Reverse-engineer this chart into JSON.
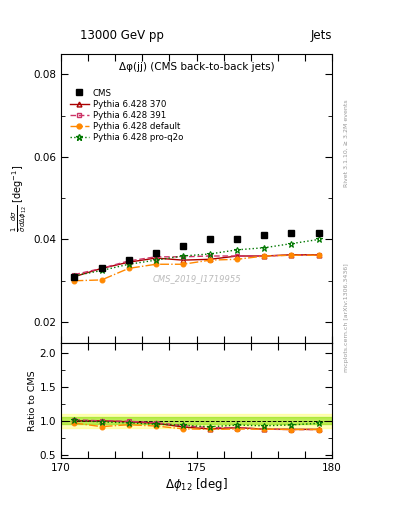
{
  "title_top": "13000 GeV pp",
  "title_right": "Jets",
  "plot_title": "Δφ(jj) (CMS back-to-back jets)",
  "ylabel_main": "$\\frac{1}{\\bar{\\sigma}}\\frac{d\\sigma}{d\\Delta\\phi_{12}}$ [deg$^{-1}$]",
  "ylabel_ratio": "Ratio to CMS",
  "xlabel": "$\\Delta\\phi_{12}$ [deg]",
  "right_label_top": "Rivet 3.1.10, ≥ 3.2M events",
  "right_label_bottom": "mcplots.cern.ch [arXiv:1306.3436]",
  "watermark": "CMS_2019_I1719955",
  "xlim": [
    170,
    180
  ],
  "ylim_main": [
    0.015,
    0.085
  ],
  "ylim_ratio": [
    0.45,
    2.15
  ],
  "yticks_main": [
    0.02,
    0.04,
    0.06,
    0.08
  ],
  "yticks_ratio": [
    0.5,
    1.0,
    1.5,
    2.0
  ],
  "xtick_labels_ratio": [
    "170",
    "",
    "",
    "",
    "",
    "175",
    "",
    "",
    "",
    "",
    "180"
  ],
  "cms_x": [
    170.5,
    171.5,
    172.5,
    173.5,
    174.5,
    175.5,
    176.5,
    177.5,
    178.5,
    179.5
  ],
  "cms_y": [
    0.031,
    0.033,
    0.035,
    0.0368,
    0.0385,
    0.04,
    0.04,
    0.041,
    0.0415,
    0.0415
  ],
  "p370_x": [
    170.5,
    171.5,
    172.5,
    173.5,
    174.5,
    175.5,
    176.5,
    177.5,
    178.5,
    179.5
  ],
  "p370_y": [
    0.031,
    0.033,
    0.0345,
    0.0355,
    0.035,
    0.0352,
    0.036,
    0.036,
    0.0363,
    0.0363
  ],
  "p391_x": [
    170.5,
    171.5,
    172.5,
    173.5,
    174.5,
    175.5,
    176.5,
    177.5,
    178.5,
    179.5
  ],
  "p391_y": [
    0.0315,
    0.033,
    0.0348,
    0.0358,
    0.0358,
    0.036,
    0.036,
    0.036,
    0.0362,
    0.0362
  ],
  "pdef_x": [
    170.5,
    171.5,
    172.5,
    173.5,
    174.5,
    175.5,
    176.5,
    177.5,
    178.5,
    179.5
  ],
  "pdef_y": [
    0.03,
    0.0302,
    0.033,
    0.034,
    0.034,
    0.035,
    0.0352,
    0.036,
    0.0362,
    0.0362
  ],
  "pproq2o_x": [
    170.5,
    171.5,
    172.5,
    173.5,
    174.5,
    175.5,
    176.5,
    177.5,
    178.5,
    179.5
  ],
  "pproq2o_y": [
    0.0312,
    0.0325,
    0.034,
    0.035,
    0.036,
    0.0365,
    0.0375,
    0.038,
    0.039,
    0.04
  ],
  "p370_ratio": [
    1.0,
    1.0,
    0.986,
    0.965,
    0.91,
    0.88,
    0.9,
    0.878,
    0.875,
    0.875
  ],
  "p391_ratio": [
    1.016,
    1.0,
    0.994,
    0.973,
    0.93,
    0.9,
    0.9,
    0.878,
    0.872,
    0.872
  ],
  "pdef_ratio": [
    0.968,
    0.915,
    0.943,
    0.924,
    0.883,
    0.875,
    0.88,
    0.878,
    0.872,
    0.872
  ],
  "pproq2o_ratio": [
    1.006,
    0.985,
    0.971,
    0.951,
    0.935,
    0.913,
    0.938,
    0.927,
    0.94,
    0.964
  ],
  "color_cms": "#000000",
  "color_370": "#aa0000",
  "color_391": "#cc3366",
  "color_def": "#ff8800",
  "color_proq2o": "#007700",
  "shade_green": "#88dd00",
  "shade_yellow": "#ffff66"
}
